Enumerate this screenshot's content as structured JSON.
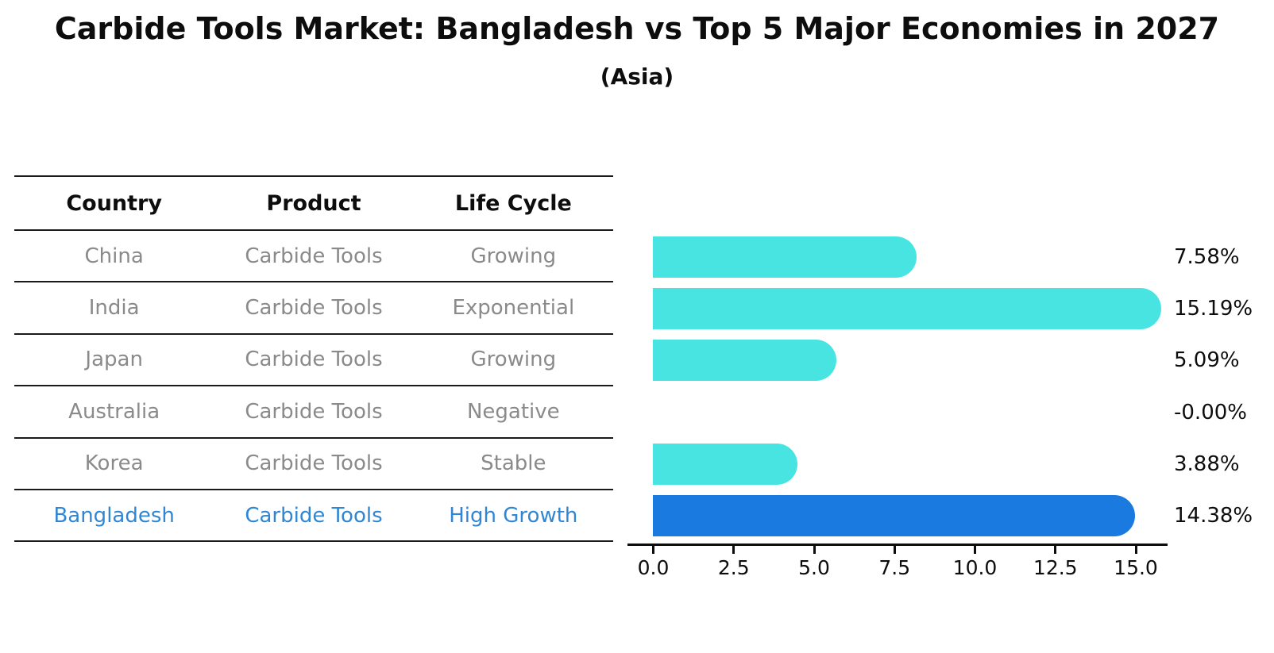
{
  "title": "Carbide Tools Market: Bangladesh vs Top 5 Major Economies in 2027",
  "subtitle": "(Asia)",
  "table": {
    "headers": [
      "Country",
      "Product",
      "Life Cycle"
    ],
    "rows": [
      {
        "country": "China",
        "product": "Carbide Tools",
        "life_cycle": "Growing"
      },
      {
        "country": "India",
        "product": "Carbide Tools",
        "life_cycle": "Exponential"
      },
      {
        "country": "Japan",
        "product": "Carbide Tools",
        "life_cycle": "Growing"
      },
      {
        "country": "Australia",
        "product": "Carbide Tools",
        "life_cycle": "Negative"
      },
      {
        "country": "Korea",
        "product": "Carbide Tools",
        "life_cycle": "Stable"
      },
      {
        "country": "Bangladesh",
        "product": "Carbide Tools",
        "life_cycle": "High Growth"
      }
    ],
    "highlight_row": 5
  },
  "chart_data": {
    "type": "bar",
    "orientation": "horizontal",
    "categories": [
      "China",
      "India",
      "Japan",
      "Australia",
      "Korea",
      "Bangladesh"
    ],
    "values": [
      7.58,
      15.19,
      5.09,
      -0.0,
      3.88,
      14.38
    ],
    "value_labels": [
      "7.58%",
      "15.19%",
      "5.09%",
      "-0.00%",
      "3.88%",
      "14.38%"
    ],
    "x_tick_labels": [
      "0.0",
      "2.5",
      "5.0",
      "7.5",
      "10.0",
      "12.5",
      "15.0"
    ],
    "x_tick_values": [
      0,
      2.5,
      5,
      7.5,
      10,
      12.5,
      15
    ],
    "xlim": [
      0,
      16
    ],
    "grid": false,
    "legend": null,
    "bar_color": "#47E4E2",
    "highlight_bar_color": "#1B7AE0",
    "highlight_index": 5
  },
  "colors": {
    "title_text": "#0d0d0d",
    "table_text": "#8a8a8a",
    "highlight_text": "#2E86D5",
    "axis": "#0d0d0d"
  }
}
